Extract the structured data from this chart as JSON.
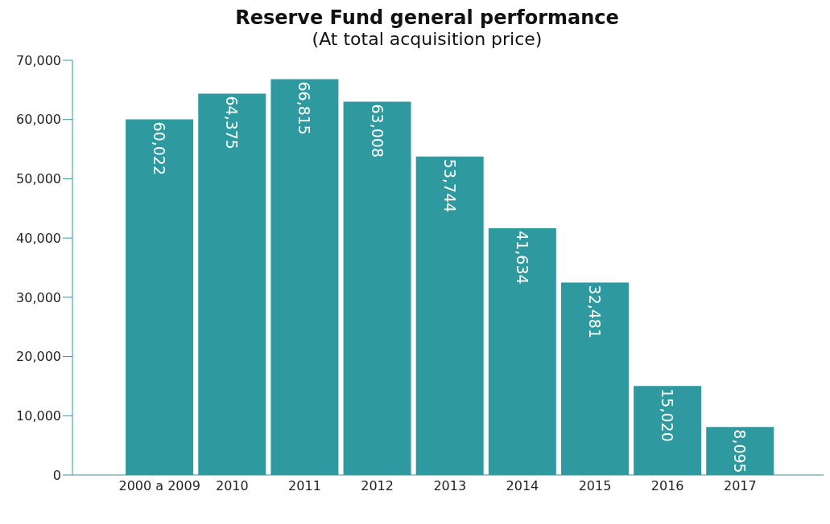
{
  "chart_data": {
    "type": "bar",
    "title": "Reserve Fund general performance",
    "subtitle": "(At total acquisition price)",
    "categories": [
      "2000 a 2009",
      "2010",
      "2011",
      "2012",
      "2013",
      "2014",
      "2015",
      "2016",
      "2017"
    ],
    "values": [
      60022,
      64375,
      66815,
      63008,
      53744,
      41634,
      32481,
      15020,
      8095
    ],
    "value_labels": [
      "60,022",
      "64,375",
      "66,815",
      "63,008",
      "53,744",
      "41,634",
      "32,481",
      "15,020",
      "8,095"
    ],
    "color": "#2e999e",
    "ylim": [
      0,
      70000
    ],
    "yticks": [
      {
        "value": 0,
        "label": "0"
      },
      {
        "value": 10000,
        "label": "10,000"
      },
      {
        "value": 20000,
        "label": "20,000"
      },
      {
        "value": 30000,
        "label": "30,000"
      },
      {
        "value": 40000,
        "label": "40,000"
      },
      {
        "value": 50000,
        "label": "50,000"
      },
      {
        "value": 60000,
        "label": "60,000"
      },
      {
        "value": 70000,
        "label": "70,000"
      }
    ],
    "grid": false,
    "legend": false
  }
}
